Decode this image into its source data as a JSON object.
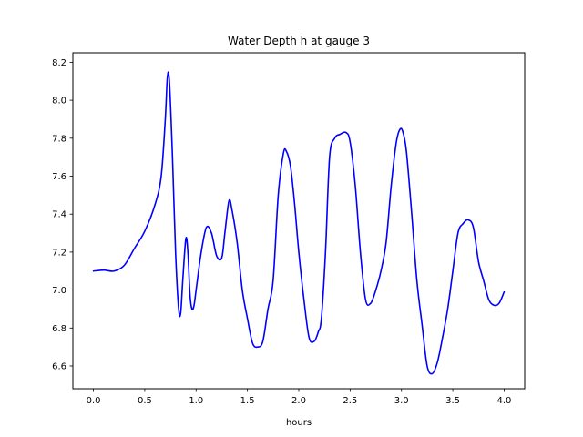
{
  "chart_data": {
    "type": "line",
    "title": "Water Depth h at gauge 3",
    "xlabel": "hours",
    "ylabel": "",
    "xlim": [
      -0.2,
      4.2
    ],
    "ylim": [
      6.48,
      8.25
    ],
    "xticks": [
      0.0,
      0.5,
      1.0,
      1.5,
      2.0,
      2.5,
      3.0,
      3.5,
      4.0
    ],
    "xtick_labels": [
      "0.0",
      "0.5",
      "1.0",
      "1.5",
      "2.0",
      "2.5",
      "3.0",
      "3.5",
      "4.0"
    ],
    "yticks": [
      6.6,
      6.8,
      7.0,
      7.2,
      7.4,
      7.6,
      7.8,
      8.0,
      8.2
    ],
    "ytick_labels": [
      "6.6",
      "6.8",
      "7.0",
      "7.2",
      "7.4",
      "7.6",
      "7.8",
      "8.0",
      "8.2"
    ],
    "grid": false,
    "series": [
      {
        "color": "#0000ff",
        "x": [
          0.0,
          0.1,
          0.2,
          0.3,
          0.4,
          0.5,
          0.6,
          0.66,
          0.7,
          0.72,
          0.74,
          0.77,
          0.8,
          0.83,
          0.85,
          0.87,
          0.9,
          0.92,
          0.94,
          0.96,
          0.98,
          1.0,
          1.05,
          1.1,
          1.15,
          1.2,
          1.25,
          1.28,
          1.32,
          1.35,
          1.4,
          1.45,
          1.5,
          1.55,
          1.6,
          1.65,
          1.7,
          1.75,
          1.8,
          1.85,
          1.88,
          1.92,
          1.96,
          2.0,
          2.05,
          2.1,
          2.15,
          2.19,
          2.22,
          2.26,
          2.3,
          2.35,
          2.4,
          2.46,
          2.5,
          2.55,
          2.6,
          2.65,
          2.7,
          2.75,
          2.8,
          2.85,
          2.9,
          2.95,
          2.99,
          3.02,
          3.05,
          3.1,
          3.15,
          3.2,
          3.25,
          3.3,
          3.35,
          3.4,
          3.45,
          3.5,
          3.55,
          3.6,
          3.65,
          3.7,
          3.75,
          3.8,
          3.85,
          3.9,
          3.95,
          4.0
        ],
        "y": [
          7.1,
          7.105,
          7.1,
          7.13,
          7.22,
          7.31,
          7.45,
          7.6,
          7.9,
          8.12,
          8.1,
          7.7,
          7.2,
          6.9,
          6.88,
          7.05,
          7.27,
          7.2,
          6.98,
          6.9,
          6.92,
          7.0,
          7.2,
          7.33,
          7.3,
          7.18,
          7.17,
          7.3,
          7.47,
          7.42,
          7.25,
          7.0,
          6.85,
          6.72,
          6.7,
          6.73,
          6.9,
          7.05,
          7.5,
          7.72,
          7.73,
          7.65,
          7.45,
          7.2,
          6.95,
          6.75,
          6.73,
          6.78,
          6.85,
          7.2,
          7.7,
          7.8,
          7.82,
          7.83,
          7.78,
          7.55,
          7.2,
          6.95,
          6.93,
          7.0,
          7.1,
          7.25,
          7.55,
          7.78,
          7.85,
          7.82,
          7.72,
          7.4,
          7.05,
          6.82,
          6.6,
          6.56,
          6.62,
          6.75,
          6.9,
          7.1,
          7.3,
          7.35,
          7.37,
          7.33,
          7.15,
          7.05,
          6.95,
          6.92,
          6.93,
          6.99
        ]
      }
    ]
  }
}
